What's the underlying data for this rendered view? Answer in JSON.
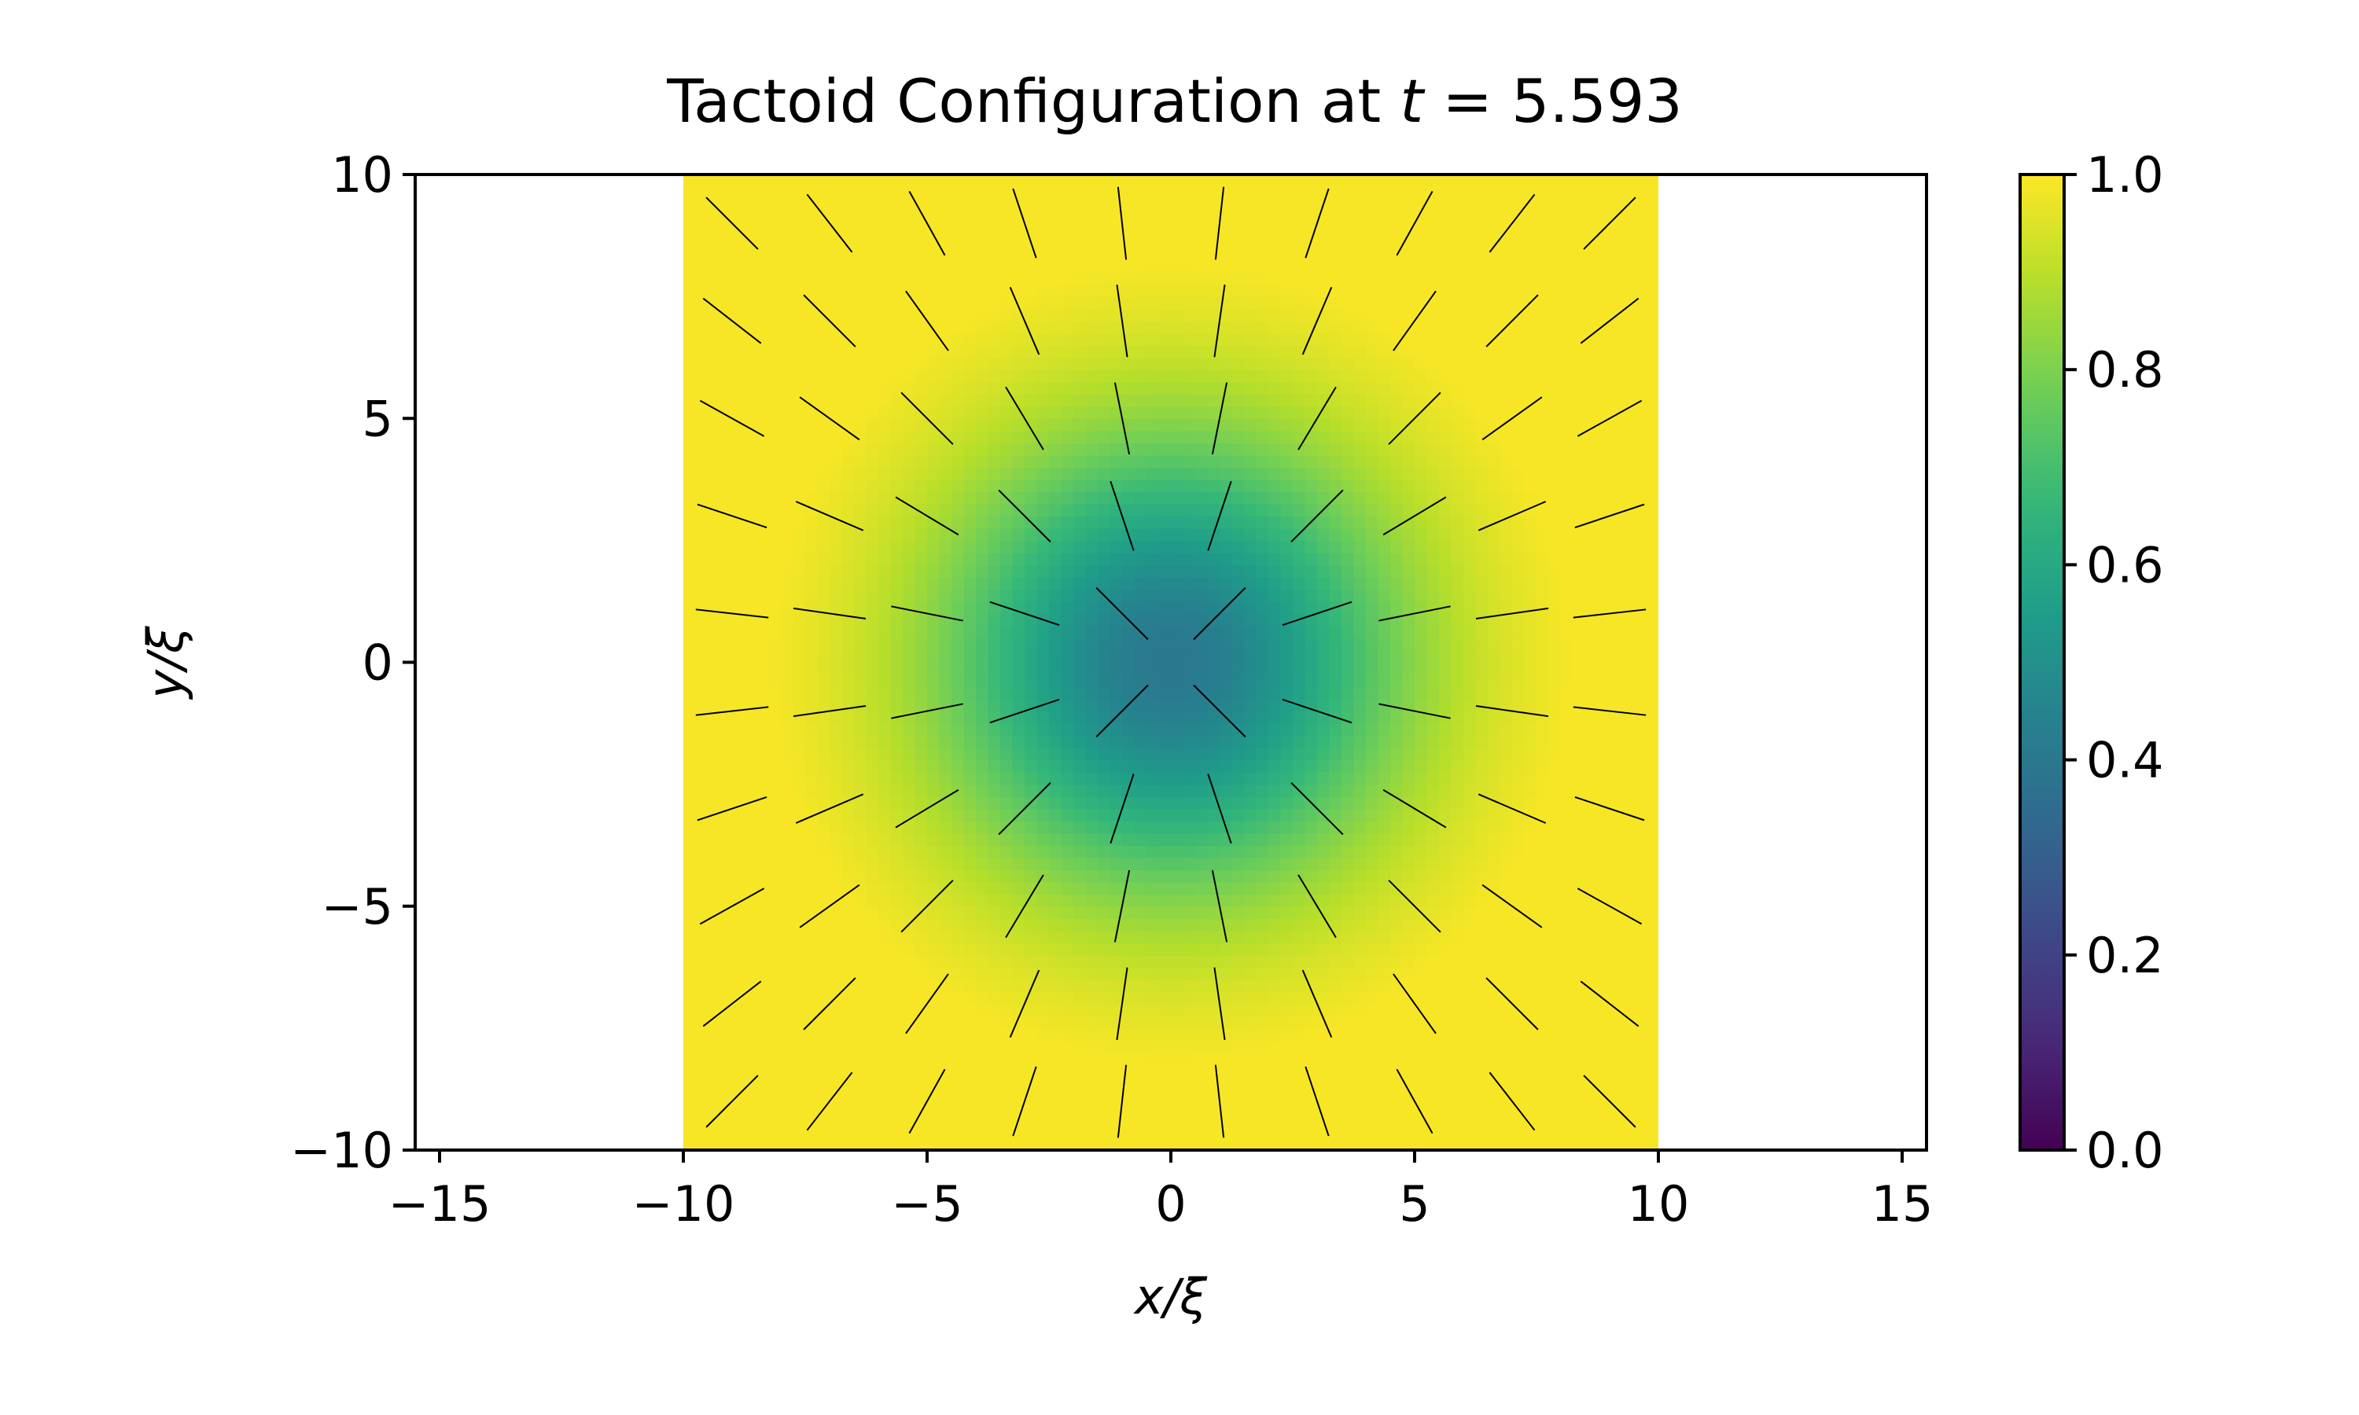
{
  "chart_data": {
    "type": "heatmap",
    "title_prefix": "Tactoid Configuration at ",
    "title_var": "t",
    "title_eq": " = ",
    "title_value": "5.593",
    "xlabel": "x/ξ",
    "ylabel": "y/ξ",
    "xlim": [
      -15.5,
      15.5
    ],
    "ylim": [
      -10,
      10
    ],
    "xticks": [
      -15,
      -10,
      -5,
      0,
      5,
      10,
      15
    ],
    "xtick_labels": [
      "−15",
      "−10",
      "−5",
      "0",
      "5",
      "10",
      "15"
    ],
    "yticks": [
      -10,
      -5,
      0,
      5,
      10
    ],
    "ytick_labels": [
      "−10",
      "−5",
      "0",
      "5",
      "10"
    ],
    "field_extent": {
      "x": [
        -10,
        10
      ],
      "y": [
        -10,
        10
      ]
    },
    "colormap": "viridis",
    "colorbar": {
      "range": [
        0.0,
        1.0
      ],
      "ticks": [
        0.0,
        0.2,
        0.4,
        0.6,
        0.8,
        1.0
      ],
      "tick_labels": [
        "0.0",
        "0.2",
        "0.4",
        "0.6",
        "0.8",
        "1.0"
      ]
    },
    "scalar_field": {
      "description_free": true,
      "min_value_at_center": 0.4,
      "max_value_at_edges": 0.98
    },
    "director_grid": {
      "x": [
        -9,
        -7,
        -5,
        -3,
        -1,
        1,
        3,
        5,
        7,
        9
      ],
      "y": [
        9,
        7,
        5,
        3,
        1,
        -1,
        -3,
        -5,
        -7,
        -9
      ]
    },
    "colors": {
      "viridis": [
        "#440154",
        "#482878",
        "#3e4989",
        "#31688e",
        "#26828e",
        "#1f9e89",
        "#35b779",
        "#6ece58",
        "#b5de2b",
        "#fde725"
      ],
      "director_line": "#000000"
    }
  }
}
